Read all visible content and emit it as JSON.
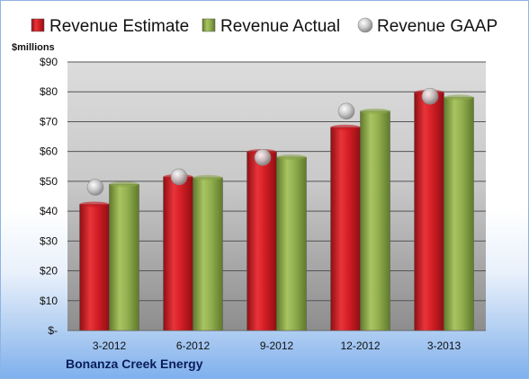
{
  "company": "Bonanza Creek Energy",
  "chart_data": {
    "type": "bar",
    "unit_label": "$millions",
    "categories": [
      "3-2012",
      "6-2012",
      "9-2012",
      "12-2012",
      "3-2013"
    ],
    "series": [
      {
        "name": "Revenue Estimate",
        "kind": "bar",
        "color": "#c4161c",
        "values": [
          42.3,
          51.5,
          59.9,
          68.1,
          79.8
        ]
      },
      {
        "name": "Revenue Actual",
        "kind": "bar",
        "color": "#8aa648",
        "values": [
          49.0,
          51.2,
          58.1,
          73.5,
          78.1
        ]
      },
      {
        "name": "Revenue GAAP",
        "kind": "marker",
        "color": "#b9b9b9",
        "values": [
          48.0,
          51.5,
          58.0,
          73.5,
          78.5
        ]
      }
    ],
    "y_ticks": [
      "$-",
      "$10",
      "$20",
      "$30",
      "$40",
      "$50",
      "$60",
      "$70",
      "$80",
      "$90"
    ],
    "ylim": [
      0,
      90
    ],
    "grid": true,
    "legend_position": "top"
  }
}
